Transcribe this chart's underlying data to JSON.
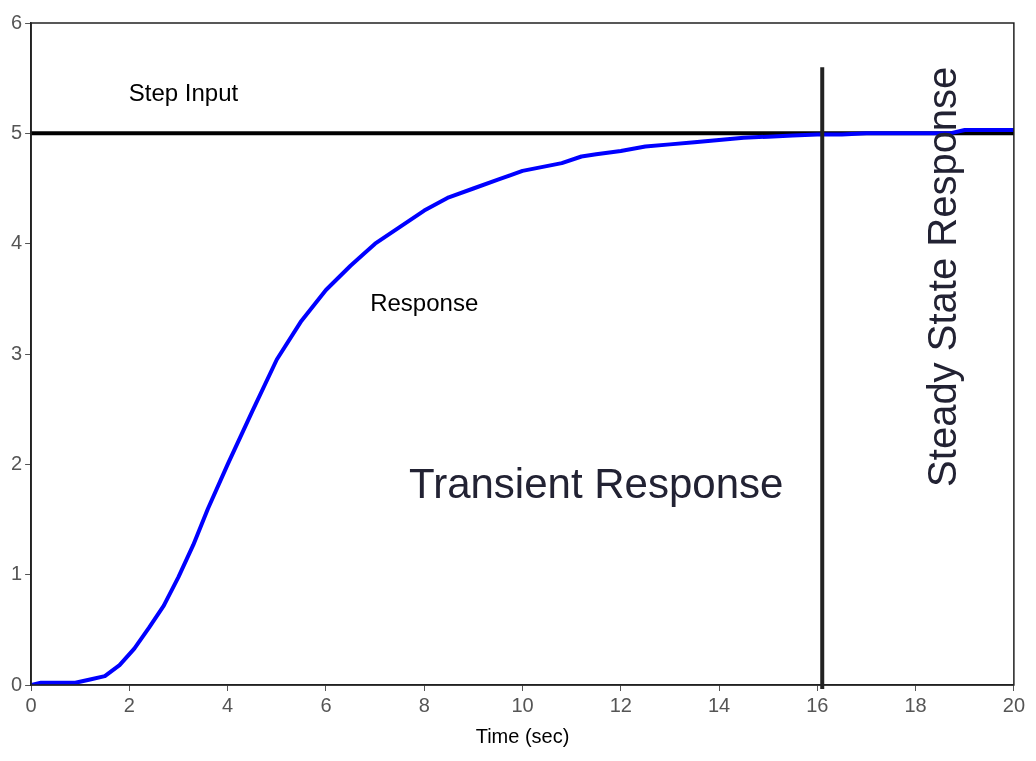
{
  "chart_data": {
    "type": "line",
    "xlabel": "Time (sec)",
    "xlim": [
      0,
      20
    ],
    "xticks": [
      0,
      2,
      4,
      6,
      8,
      10,
      12,
      14,
      16,
      18,
      20
    ],
    "ylim": [
      0,
      6
    ],
    "yticks": [
      0,
      1,
      2,
      3,
      4,
      5,
      6
    ],
    "grid": false,
    "legend": false,
    "marker": "none",
    "line_style": "solid",
    "series": [
      {
        "name": "Step Input",
        "color": "#000000",
        "x": [
          0,
          20
        ],
        "values": [
          5,
          5
        ]
      },
      {
        "name": "Response",
        "color": "#0000ff",
        "x": [
          0,
          0.2,
          0.9,
          1.2,
          1.5,
          1.8,
          2.1,
          2.4,
          2.7,
          3,
          3.3,
          3.6,
          4,
          4.5,
          5,
          5.5,
          6,
          6.5,
          7,
          7.5,
          8,
          8.5,
          9,
          9.5,
          10,
          10.8,
          11.2,
          11.5,
          12,
          12.5,
          13,
          13.5,
          14,
          14.5,
          15,
          15.5,
          16,
          16.5,
          17,
          18,
          18.7,
          19,
          20
        ],
        "values": [
          0,
          0.02,
          0.02,
          0.05,
          0.08,
          0.18,
          0.33,
          0.52,
          0.72,
          0.98,
          1.27,
          1.6,
          2.0,
          2.48,
          2.95,
          3.3,
          3.58,
          3.8,
          4.0,
          4.15,
          4.3,
          4.42,
          4.5,
          4.58,
          4.66,
          4.73,
          4.79,
          4.81,
          4.84,
          4.88,
          4.9,
          4.92,
          4.94,
          4.96,
          4.97,
          4.98,
          4.99,
          4.99,
          5.0,
          5.0,
          5.0,
          5.03,
          5.03
        ]
      }
    ],
    "ref_lines": [
      {
        "axis": "x",
        "value": 16.1,
        "color": "#222222",
        "line_style": "solid"
      }
    ],
    "annotations": [
      "Transient Response",
      "Steady State Response"
    ]
  }
}
